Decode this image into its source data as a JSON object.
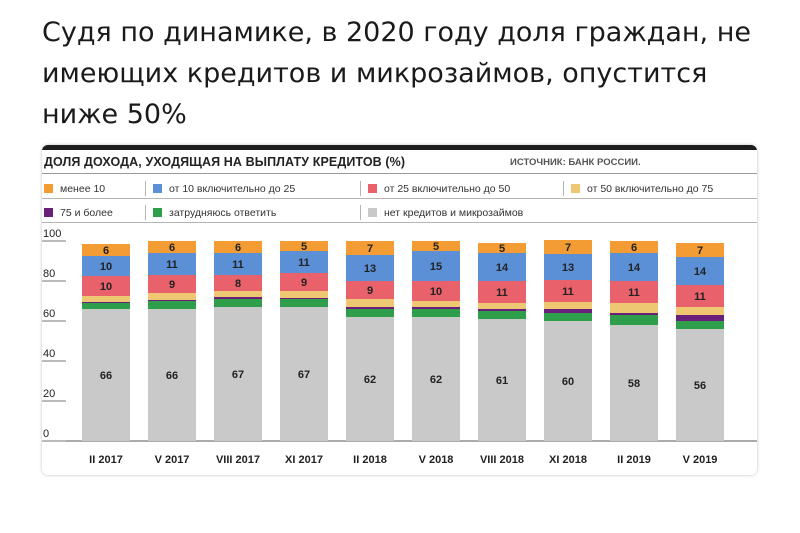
{
  "headline": "Судя по динамике, в 2020 году доля граждан, не имеющих кредитов и микрозаймов, опустится ниже 50%",
  "chart_data": {
    "type": "bar",
    "stacked": true,
    "title": "ДОЛЯ ДОХОДА, УХОДЯЩАЯ НА ВЫПЛАТУ КРЕДИТОВ (%)",
    "source": "ИСТОЧНИК: БАНК РОССИИ.",
    "ylim": [
      0,
      100
    ],
    "yticks": [
      "0",
      "20",
      "40",
      "60",
      "80",
      "100"
    ],
    "categories": [
      "II 2017",
      "V 2017",
      "VIII 2017",
      "XI 2017",
      "II 2018",
      "V 2018",
      "VIII 2018",
      "XI 2018",
      "II 2019",
      "V 2019"
    ],
    "legend_placement": "top",
    "series": [
      {
        "name": "нет кредитов и микрозаймов",
        "color": "#c9c9c9",
        "labeled": true,
        "values": [
          66,
          66,
          67,
          67,
          62,
          62,
          61,
          60,
          58,
          56
        ]
      },
      {
        "name": "затрудняюсь ответить",
        "color": "#2f9e4b",
        "labeled": false,
        "values": [
          3,
          4,
          4,
          4,
          4,
          4,
          4,
          4,
          5,
          4
        ]
      },
      {
        "name": "75 и более",
        "color": "#6a1f7a",
        "labeled": false,
        "values": [
          0.5,
          0.5,
          1,
          0.5,
          1,
          1,
          1,
          2,
          1,
          3
        ]
      },
      {
        "name": "от 50 включительно до 75",
        "color": "#eec773",
        "labeled": false,
        "values": [
          3,
          3.5,
          3,
          3.5,
          4,
          3,
          3,
          3.5,
          5,
          4
        ]
      },
      {
        "name": "от 25 включительно до 50",
        "color": "#e8616b",
        "labeled": true,
        "values": [
          10,
          9,
          8,
          9,
          9,
          10,
          11,
          11,
          11,
          11
        ]
      },
      {
        "name": "от 10 включительно до 25",
        "color": "#5b8fd6",
        "labeled": true,
        "values": [
          10,
          11,
          11,
          11,
          13,
          15,
          14,
          13,
          14,
          14
        ]
      },
      {
        "name": "менее 10",
        "color": "#f39c33",
        "labeled": true,
        "values": [
          6,
          6,
          6,
          5,
          7,
          5,
          5,
          7,
          6,
          7
        ]
      }
    ]
  },
  "legend": [
    {
      "label": "менее 10",
      "color": "#f39c33"
    },
    {
      "label": "от 10 включительно до 25",
      "color": "#5b8fd6"
    },
    {
      "label": "от 25 включительно до 50",
      "color": "#e8616b"
    },
    {
      "label": "от 50 включительно до 75",
      "color": "#eec773"
    },
    {
      "label": "75 и более",
      "color": "#6a1f7a"
    },
    {
      "label": "затрудняюсь ответить",
      "color": "#2f9e4b"
    },
    {
      "label": "нет кредитов и микрозаймов",
      "color": "#c9c9c9"
    }
  ]
}
